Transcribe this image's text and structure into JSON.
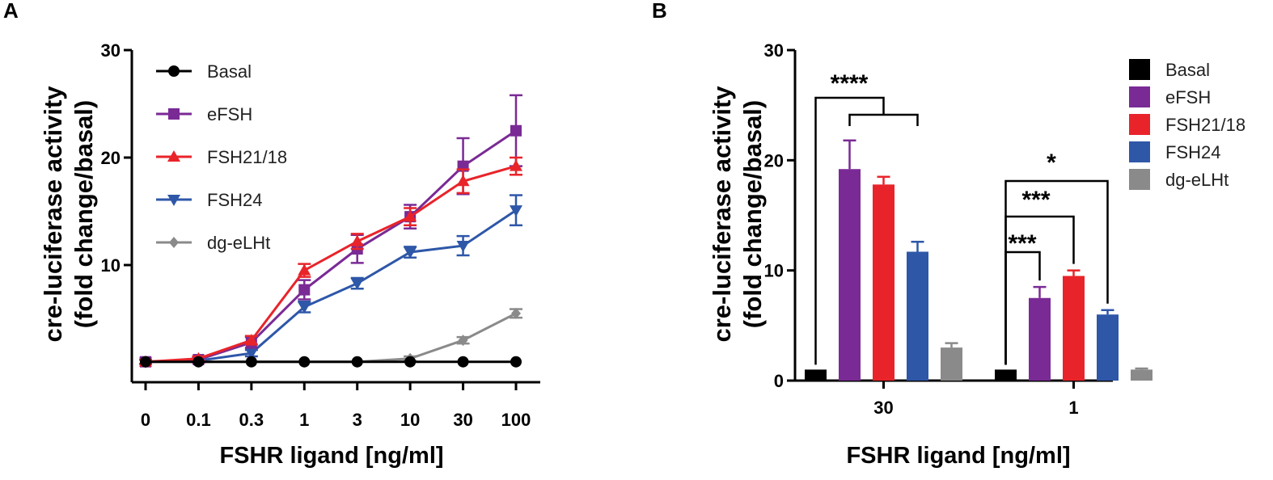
{
  "chart_data": [
    {
      "panel": "A",
      "type": "line",
      "title": "",
      "xlabel": "FSHR ligand [ng/ml]",
      "ylabel_lines": [
        "cre-luciferase activity",
        "(fold change/basal)"
      ],
      "categories": [
        "0",
        "0.1",
        "0.3",
        "1",
        "3",
        "10",
        "30",
        "100"
      ],
      "ylim": [
        0,
        30
      ],
      "yticks": [
        10,
        20,
        30
      ],
      "legend_position": "top-left",
      "series": [
        {
          "name": "Basal",
          "color": "#000000",
          "marker": "circle",
          "values": [
            1,
            1,
            1,
            1,
            1,
            1,
            1,
            1
          ],
          "errors": [
            0,
            0,
            0,
            0,
            0,
            0,
            0,
            0
          ]
        },
        {
          "name": "eFSH",
          "color": "#7a2a95",
          "marker": "square",
          "values": [
            1,
            1.2,
            2.8,
            7.7,
            11.5,
            14.5,
            19.2,
            22.5
          ],
          "errors": [
            0.2,
            0.2,
            0.5,
            0.9,
            1.3,
            1.1,
            2.6,
            3.3
          ]
        },
        {
          "name": "FSH21/18",
          "color": "#e8242a",
          "marker": "triangle-up",
          "values": [
            1,
            1.3,
            3,
            9.5,
            12.2,
            14.5,
            17.8,
            19.2
          ],
          "errors": [
            0.2,
            0.2,
            0.4,
            0.6,
            0.7,
            0.8,
            1.1,
            0.8
          ]
        },
        {
          "name": "FSH24",
          "color": "#2e57a8",
          "marker": "triangle-down",
          "values": [
            1,
            1.1,
            1.8,
            6.1,
            8.3,
            11.2,
            11.8,
            15.1
          ],
          "errors": [
            0.2,
            0.2,
            0.3,
            0.5,
            0.5,
            0.5,
            0.9,
            1.4
          ]
        },
        {
          "name": "dg-eLHt",
          "color": "#8a8a8a",
          "marker": "diamond",
          "values": [
            1,
            1,
            1,
            1,
            1,
            1.3,
            3,
            5.5
          ],
          "errors": [
            0.1,
            0.1,
            0.1,
            0.1,
            0.1,
            0.2,
            0.3,
            0.4
          ]
        }
      ]
    },
    {
      "panel": "B",
      "type": "bar",
      "title": "",
      "xlabel": "FSHR ligand [ng/ml]",
      "ylabel_lines": [
        "cre-luciferase activity",
        "(fold change/basal)"
      ],
      "categories": [
        "30",
        "1"
      ],
      "ylim": [
        0,
        30
      ],
      "yticks": [
        0,
        10,
        20,
        30
      ],
      "legend_position": "top-right",
      "series": [
        {
          "name": "Basal",
          "color": "#000000",
          "values": [
            1,
            1
          ],
          "errors": [
            0,
            0
          ]
        },
        {
          "name": "eFSH",
          "color": "#7a2a95",
          "values": [
            19.2,
            7.5
          ],
          "errors": [
            2.6,
            1.0
          ]
        },
        {
          "name": "FSH21/18",
          "color": "#e8242a",
          "values": [
            17.8,
            9.5
          ],
          "errors": [
            0.7,
            0.5
          ]
        },
        {
          "name": "FSH24",
          "color": "#2e57a8",
          "values": [
            11.7,
            6.0
          ],
          "errors": [
            0.9,
            0.4
          ]
        },
        {
          "name": "dg-eLHt",
          "color": "#8a8a8a",
          "values": [
            3.0,
            1.0
          ],
          "errors": [
            0.4,
            0.1
          ]
        }
      ],
      "annotations": [
        {
          "label": "****",
          "group": 0,
          "from": 0,
          "to": [
            1,
            2,
            3
          ],
          "kind": "double"
        },
        {
          "label": "*",
          "group": 1,
          "from": 0,
          "to": [
            3
          ],
          "kind": "single"
        },
        {
          "label": "***",
          "group": 1,
          "from": 0,
          "to": [
            2
          ],
          "kind": "single"
        },
        {
          "label": "***",
          "group": 1,
          "from": 0,
          "to": [
            1
          ],
          "kind": "single"
        }
      ]
    }
  ]
}
